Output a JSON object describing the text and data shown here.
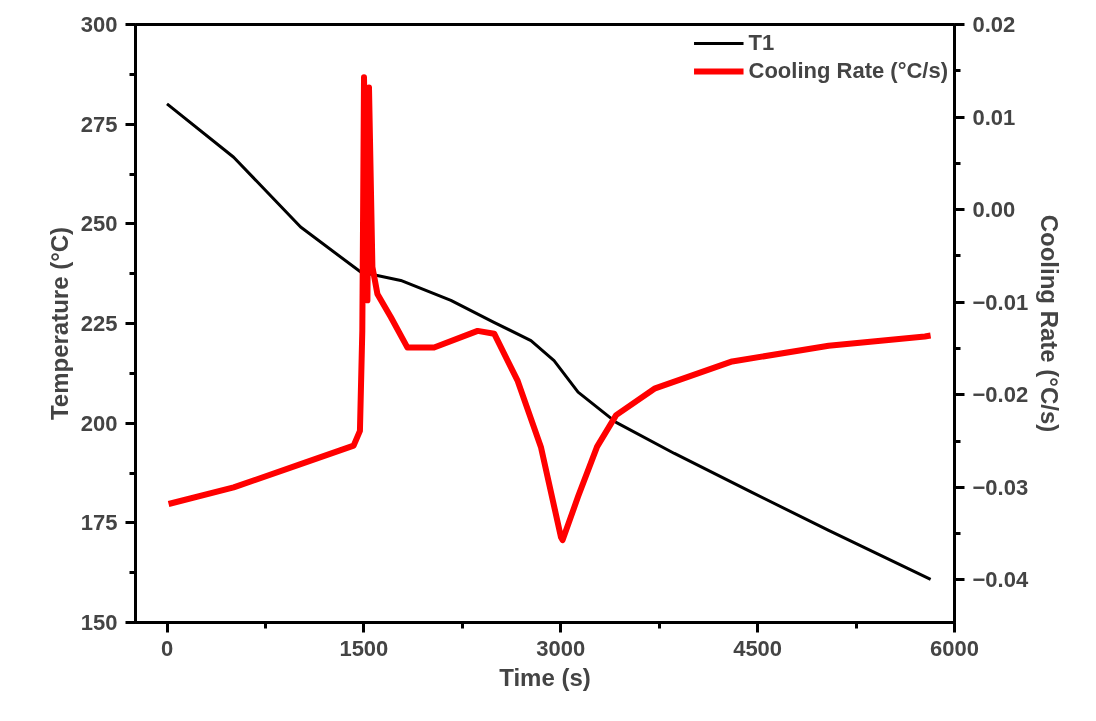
{
  "chart_data": {
    "type": "line",
    "xlabel": "Time (s)",
    "ylabel": "Temperature (°C)",
    "y2label": "Cooling Rate (°C/s)",
    "xlim": [
      -240,
      6000
    ],
    "xticks": [
      0,
      1500,
      3000,
      4500,
      6000
    ],
    "ylim": [
      150,
      300
    ],
    "yticks": [
      150,
      175,
      200,
      225,
      250,
      275,
      300
    ],
    "y2lim": [
      -0.0446,
      0.02
    ],
    "y2ticks": [
      -0.04,
      -0.03,
      -0.02,
      -0.01,
      {
        "value": 0,
        "label": "0.00"
      },
      0.01,
      0.02
    ],
    "legend": "top right",
    "grid": false,
    "marker": "none",
    "line_style": "solid",
    "series": [
      {
        "name": "T1",
        "color": "#000000",
        "x": [
          0,
          508,
          1018,
          1476,
          1781,
          2163,
          2491,
          2773,
          2949,
          3132,
          3422,
          3866,
          4453,
          5041,
          5818
        ],
        "values": [
          280.1,
          266.7,
          249.2,
          237.9,
          235.8,
          230.8,
          225.3,
          220.7,
          215.7,
          207.8,
          200.2,
          192.4,
          182.7,
          173.1,
          160.8
        ]
      },
      {
        "name": "Cooling Rate (°C/s)",
        "color": "#ff0000",
        "axis": "y2",
        "x": [
          12,
          508,
          1018,
          1422,
          1470,
          1488,
          1501,
          1527,
          1539,
          1565,
          1603,
          1705,
          1832,
          2035,
          2367,
          2493,
          2672,
          2850,
          3002,
          3014,
          3132,
          3277,
          3422,
          3719,
          4306,
          5041,
          5774,
          5818
        ],
        "values": [
          -0.0318,
          -0.03,
          -0.0275,
          -0.0255,
          -0.0239,
          -0.0131,
          0.0143,
          -0.0098,
          0.0132,
          -0.0062,
          -0.0091,
          -0.0116,
          -0.0149,
          -0.0149,
          -0.0131,
          -0.0134,
          -0.0185,
          -0.0257,
          -0.0354,
          -0.0357,
          -0.031,
          -0.0256,
          -0.0222,
          -0.0193,
          -0.0164,
          -0.0147,
          -0.0137,
          -0.0136
        ]
      }
    ]
  }
}
